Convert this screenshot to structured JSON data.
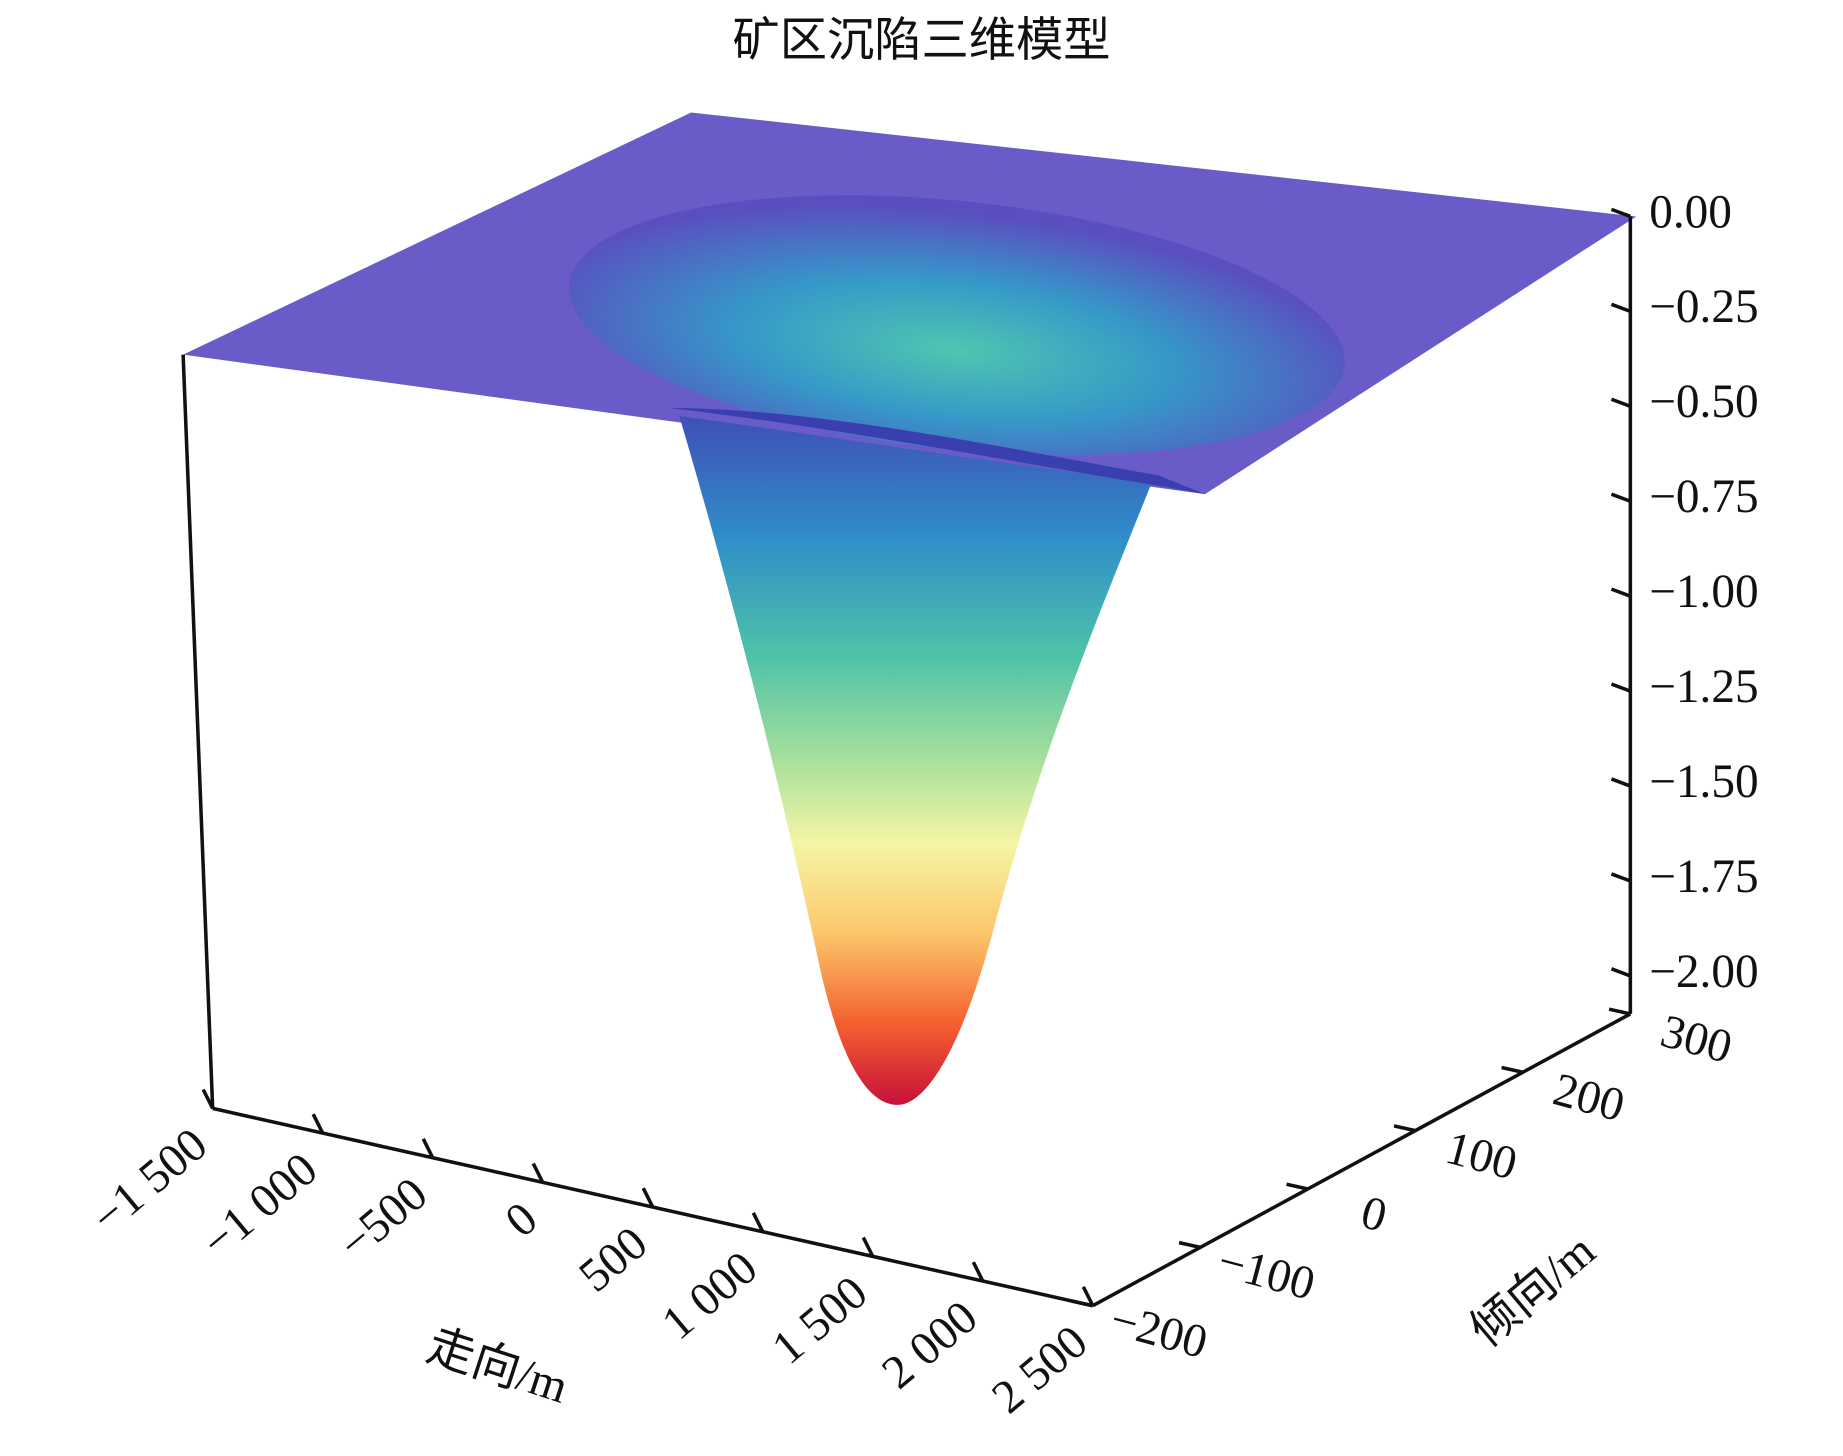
{
  "chart_data": {
    "type": "surface3d",
    "title": "矿区沉陷三维模型",
    "xlabel": "走向/m",
    "ylabel": "倾向/m",
    "xlim": [
      -1500,
      2500
    ],
    "xticks": [
      {
        "value": -1500,
        "label": "−1 500"
      },
      {
        "value": -1000,
        "label": "−1 000"
      },
      {
        "value": -500,
        "label": "−500"
      },
      0,
      500,
      {
        "value": 1000,
        "label": "1 000"
      },
      {
        "value": 1500,
        "label": "1 500"
      },
      {
        "value": 2000,
        "label": "2 000"
      },
      {
        "value": 2500,
        "label": "2 500"
      }
    ],
    "ylim": [
      -200,
      300
    ],
    "yticks": [
      {
        "value": -200,
        "label": "−200"
      },
      {
        "value": -100,
        "label": "−100"
      },
      0,
      100,
      200,
      300
    ],
    "zlim": [
      -2.1,
      0
    ],
    "zticks": [
      {
        "value": 0,
        "label": "0.00"
      },
      {
        "value": -0.25,
        "label": "−0.25"
      },
      {
        "value": -0.5,
        "label": "−0.50"
      },
      {
        "value": -0.75,
        "label": "−0.75"
      },
      {
        "value": -1,
        "label": "−1.00"
      },
      {
        "value": -1.25,
        "label": "−1.25"
      },
      {
        "value": -1.5,
        "label": "−1.50"
      },
      {
        "value": -1.75,
        "label": "−1.75"
      },
      {
        "value": -2,
        "label": "−2.00"
      }
    ]
  }
}
